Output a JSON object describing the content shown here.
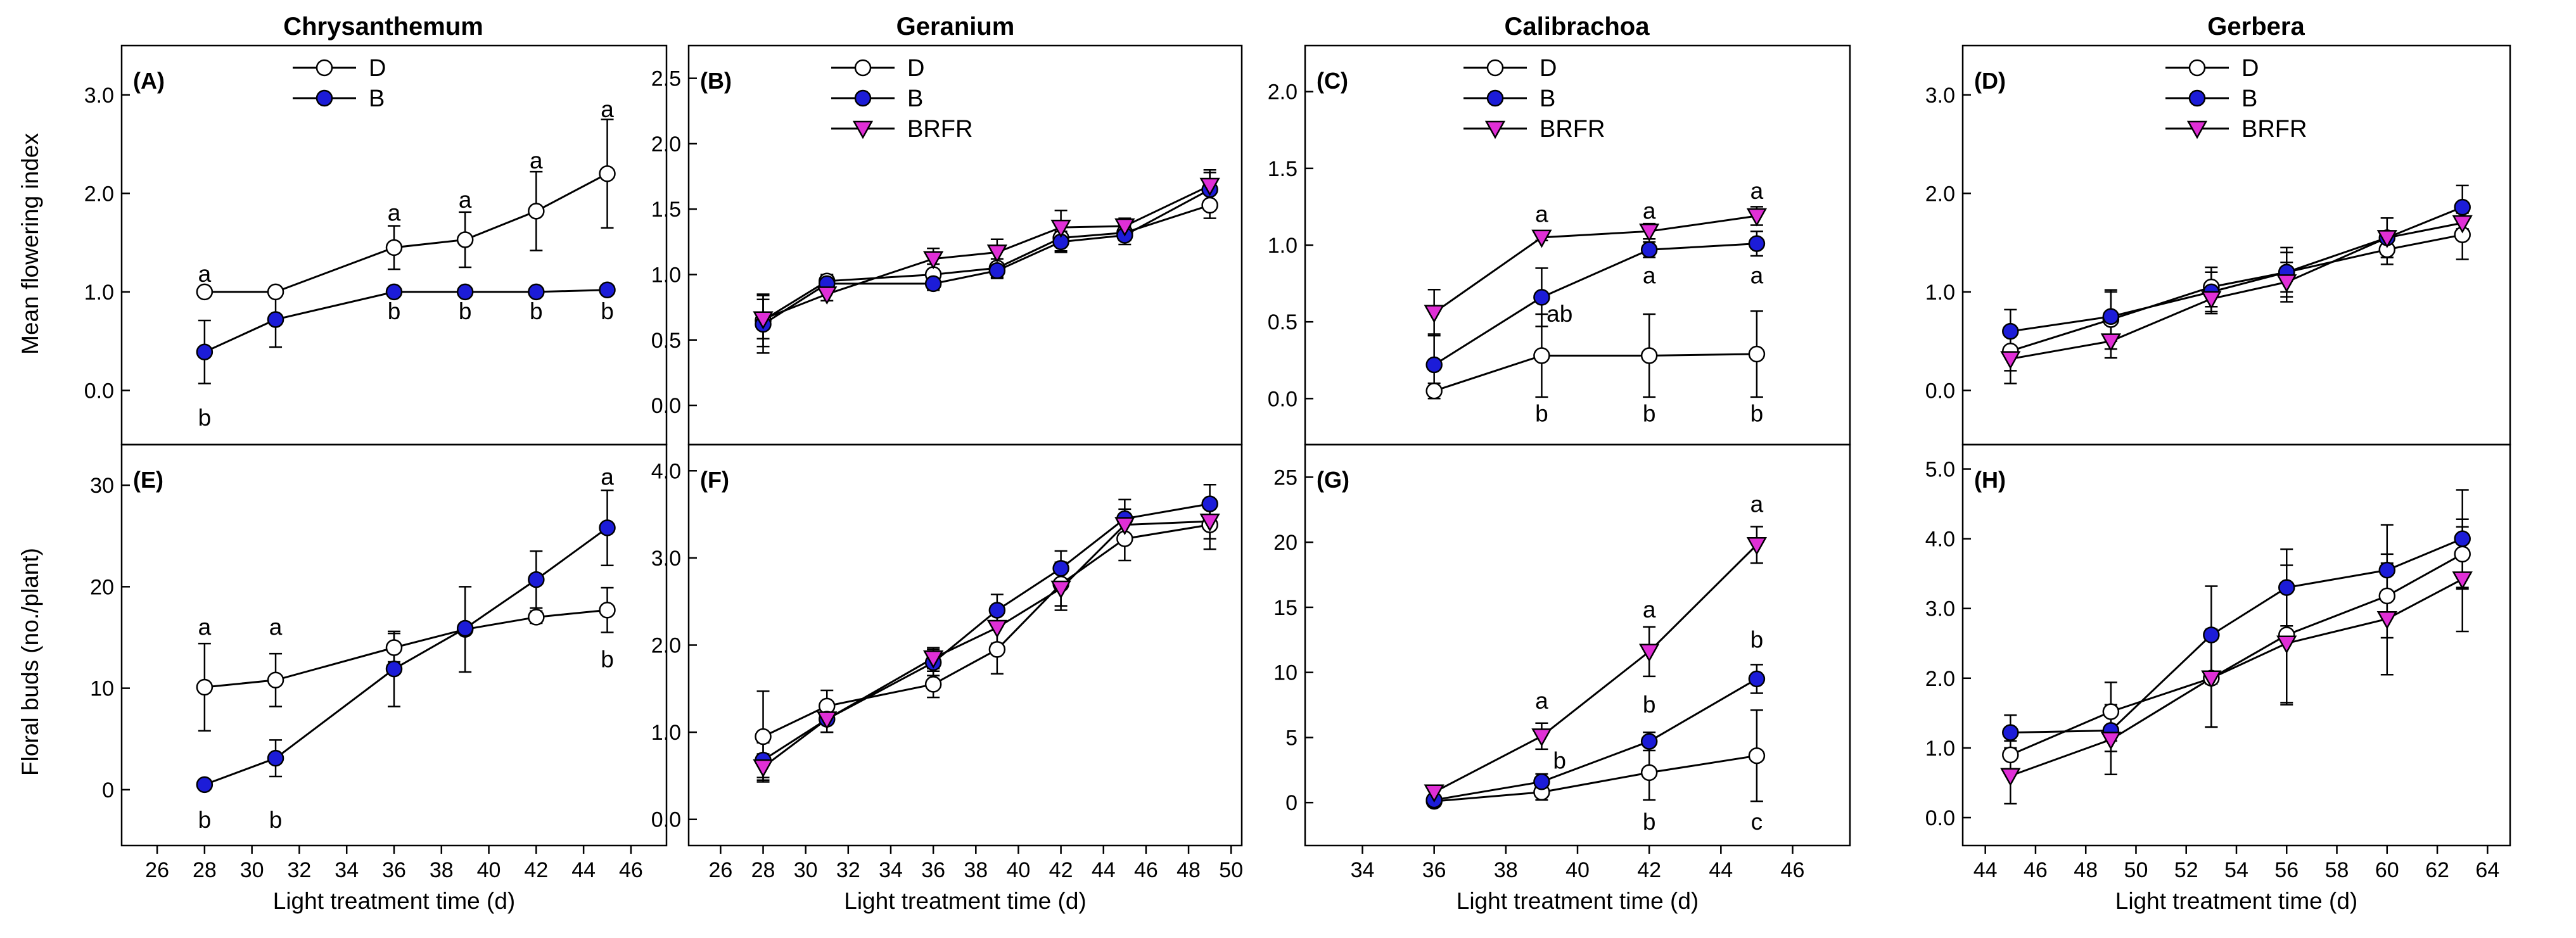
{
  "figure": {
    "columns": [
      "Chrysanthemum",
      "Geranium",
      "Calibrachoa",
      "Gerbera"
    ],
    "ylabels": {
      "top": "Mean flowering index",
      "bottom": "Floral buds (no./plant)"
    },
    "xlabel": "Light treatment time (d)"
  },
  "colors": {
    "D": "#ffffff",
    "B": "#1c1cd8",
    "BRFR": "#e02fd6",
    "stroke": "#000000"
  },
  "chart_data": [
    {
      "id": "A",
      "label": "(A)",
      "type": "line",
      "title": "Chrysanthemum",
      "xlim": [
        24.5,
        47.5
      ],
      "xticks": [
        26,
        28,
        30,
        32,
        34,
        36,
        38,
        40,
        42,
        44,
        46
      ],
      "ylim": [
        -0.55,
        3.5
      ],
      "yticks": [
        0,
        1,
        2,
        3
      ],
      "ytick_labels": [
        "0.0",
        "1.0",
        "2.0",
        "3.0"
      ],
      "xlabel": "",
      "ylabel": "Mean flowering index",
      "legend": "top-center",
      "series": [
        {
          "name": "D",
          "x": [
            28,
            31,
            36,
            39,
            42,
            45
          ],
          "y": [
            1.0,
            1.0,
            1.45,
            1.53,
            1.82,
            2.2
          ],
          "err": [
            0,
            0,
            0.22,
            0.28,
            0.4,
            0.55
          ]
        },
        {
          "name": "B",
          "x": [
            28,
            31,
            36,
            39,
            42,
            45
          ],
          "y": [
            0.39,
            0.72,
            1.0,
            1.0,
            1.0,
            1.02
          ],
          "err": [
            0.32,
            0.28,
            0,
            0,
            0,
            0
          ]
        }
      ],
      "annotations": [
        {
          "x": 28,
          "y": 1.18,
          "text": "a"
        },
        {
          "x": 28,
          "y": -0.28,
          "text": "b"
        },
        {
          "x": 36,
          "y": 1.8,
          "text": "a"
        },
        {
          "x": 36,
          "y": 0.8,
          "text": "b"
        },
        {
          "x": 39,
          "y": 1.93,
          "text": "a"
        },
        {
          "x": 39,
          "y": 0.8,
          "text": "b"
        },
        {
          "x": 42,
          "y": 2.33,
          "text": "a"
        },
        {
          "x": 42,
          "y": 0.8,
          "text": "b"
        },
        {
          "x": 45,
          "y": 2.85,
          "text": "a"
        },
        {
          "x": 45,
          "y": 0.8,
          "text": "b"
        }
      ]
    },
    {
      "id": "B",
      "label": "(B)",
      "type": "line",
      "title": "Geranium",
      "xlim": [
        24.5,
        50.5
      ],
      "xticks": [
        26,
        28,
        30,
        32,
        34,
        36,
        38,
        40,
        42,
        44,
        46,
        48,
        50
      ],
      "ylim": [
        -0.3,
        2.75
      ],
      "yticks": [
        0,
        0.5,
        1,
        1.5,
        2,
        2.5
      ],
      "ytick_labels": [
        "0.0",
        "0.5",
        "1.0",
        "1.5",
        "2.0",
        "2.5"
      ],
      "xlabel": "",
      "ylabel": "",
      "legend": "top-center",
      "series": [
        {
          "name": "D",
          "x": [
            28,
            31,
            36,
            39,
            42,
            45,
            49
          ],
          "y": [
            0.65,
            0.95,
            1.0,
            1.05,
            1.28,
            1.32,
            1.53
          ],
          "err": [
            0.2,
            0.05,
            0.08,
            0.07,
            0.1,
            0.06,
            0.1
          ]
        },
        {
          "name": "B",
          "x": [
            28,
            31,
            36,
            39,
            42,
            45,
            49
          ],
          "y": [
            0.62,
            0.93,
            0.93,
            1.03,
            1.25,
            1.3,
            1.65
          ],
          "err": [
            0.22,
            0.06,
            0.05,
            0.06,
            0.08,
            0.07,
            0.13
          ]
        },
        {
          "name": "BRFR",
          "x": [
            28,
            31,
            36,
            39,
            42,
            45,
            49
          ],
          "y": [
            0.66,
            0.85,
            1.12,
            1.17,
            1.36,
            1.37,
            1.68
          ],
          "err": [
            0.15,
            0.05,
            0.08,
            0.1,
            0.13,
            0.06,
            0.12
          ]
        }
      ],
      "annotations": []
    },
    {
      "id": "C",
      "label": "(C)",
      "type": "line",
      "title": "Calibrachoa",
      "xlim": [
        32.4,
        47.6
      ],
      "xticks": [
        34,
        36,
        38,
        40,
        42,
        44,
        46
      ],
      "ylim": [
        -0.3,
        2.3
      ],
      "yticks": [
        0,
        0.5,
        1,
        1.5,
        2
      ],
      "ytick_labels": [
        "0.0",
        "0.5",
        "1.0",
        "1.5",
        "2.0"
      ],
      "xlabel": "",
      "ylabel": "",
      "legend": "top-center",
      "series": [
        {
          "name": "D",
          "x": [
            36,
            39,
            42,
            45
          ],
          "y": [
            0.05,
            0.28,
            0.28,
            0.29
          ],
          "err": [
            0.05,
            0.27,
            0.27,
            0.28
          ]
        },
        {
          "name": "B",
          "x": [
            36,
            39,
            42,
            45
          ],
          "y": [
            0.22,
            0.66,
            0.97,
            1.01
          ],
          "err": [
            0.2,
            0.19,
            0.05,
            0.08
          ]
        },
        {
          "name": "BRFR",
          "x": [
            36,
            39,
            42,
            45
          ],
          "y": [
            0.56,
            1.05,
            1.09,
            1.19
          ],
          "err": [
            0.15,
            0.02,
            0.05,
            0.06
          ]
        }
      ],
      "annotations": [
        {
          "x": 39,
          "y": 1.2,
          "text": "a"
        },
        {
          "x": 39.5,
          "y": 0.55,
          "text": "ab"
        },
        {
          "x": 39,
          "y": -0.1,
          "text": "b"
        },
        {
          "x": 42,
          "y": 1.22,
          "text": "a"
        },
        {
          "x": 42,
          "y": 0.8,
          "text": "a"
        },
        {
          "x": 42,
          "y": -0.1,
          "text": "b"
        },
        {
          "x": 45,
          "y": 1.35,
          "text": "a"
        },
        {
          "x": 45,
          "y": 0.8,
          "text": "a"
        },
        {
          "x": 45,
          "y": -0.1,
          "text": "b"
        }
      ]
    },
    {
      "id": "D",
      "label": "(D)",
      "type": "line",
      "title": "Gerbera",
      "xlim": [
        43.1,
        64.9
      ],
      "xticks": [
        44,
        46,
        48,
        50,
        52,
        54,
        56,
        58,
        60,
        62,
        64
      ],
      "ylim": [
        -0.55,
        3.5
      ],
      "yticks": [
        0,
        1,
        2,
        3
      ],
      "ytick_labels": [
        "0.0",
        "1.0",
        "2.0",
        "3.0"
      ],
      "xlabel": "",
      "ylabel": "",
      "legend": "top-center",
      "series": [
        {
          "name": "D",
          "x": [
            45,
            49,
            53,
            56,
            60,
            63
          ],
          "y": [
            0.4,
            0.72,
            1.05,
            1.2,
            1.43,
            1.58
          ],
          "err": [
            0.2,
            0.3,
            0.2,
            0.2,
            0.15,
            0.25
          ]
        },
        {
          "name": "B",
          "x": [
            45,
            49,
            53,
            56,
            60,
            63
          ],
          "y": [
            0.6,
            0.75,
            1.0,
            1.2,
            1.55,
            1.86
          ],
          "err": [
            0.22,
            0.25,
            0.2,
            0.25,
            0.2,
            0.22
          ]
        },
        {
          "name": "BRFR",
          "x": [
            45,
            49,
            53,
            56,
            60,
            63
          ],
          "y": [
            0.32,
            0.5,
            0.93,
            1.1,
            1.55,
            1.7
          ],
          "err": [
            0.25,
            0.17,
            0.15,
            0.2,
            0.2,
            0.1
          ]
        }
      ],
      "annotations": []
    },
    {
      "id": "E",
      "label": "(E)",
      "type": "line",
      "title": "",
      "xlim": [
        24.5,
        47.5
      ],
      "xticks": [
        26,
        28,
        30,
        32,
        34,
        36,
        38,
        40,
        42,
        44,
        46
      ],
      "ylim": [
        -5.5,
        34
      ],
      "yticks": [
        0,
        10,
        20,
        30
      ],
      "ytick_labels": [
        "0",
        "10",
        "20",
        "30"
      ],
      "xlabel": "Light treatment time (d)",
      "ylabel": "Floral buds (no./plant)",
      "series": [
        {
          "name": "D",
          "x": [
            28,
            31,
            36,
            39,
            42,
            45
          ],
          "y": [
            10.1,
            10.8,
            14.0,
            15.8,
            17.0,
            17.7
          ],
          "err": [
            4.3,
            2.6,
            1.4,
            4.2,
            0.6,
            2.2
          ]
        },
        {
          "name": "B",
          "x": [
            28,
            31,
            36,
            39,
            42,
            45
          ],
          "y": [
            0.5,
            3.1,
            11.9,
            15.9,
            20.7,
            25.8
          ],
          "err": [
            0.3,
            1.8,
            3.7,
            0.5,
            2.8,
            3.7
          ]
        }
      ],
      "annotations": [
        {
          "x": 28,
          "y": 16.0,
          "text": "a"
        },
        {
          "x": 28,
          "y": -3.0,
          "text": "b"
        },
        {
          "x": 31,
          "y": 16.0,
          "text": "a"
        },
        {
          "x": 31,
          "y": -3.0,
          "text": "b"
        },
        {
          "x": 45,
          "y": 30.8,
          "text": "a"
        },
        {
          "x": 45,
          "y": 12.8,
          "text": "b"
        }
      ]
    },
    {
      "id": "F",
      "label": "(F)",
      "type": "line",
      "title": "",
      "xlim": [
        24.5,
        50.5
      ],
      "xticks": [
        26,
        28,
        30,
        32,
        34,
        36,
        38,
        40,
        42,
        44,
        46,
        48,
        50
      ],
      "ylim": [
        -0.3,
        4.3
      ],
      "yticks": [
        0,
        1,
        2,
        3,
        4
      ],
      "ytick_labels": [
        "0.0",
        "1.0",
        "2.0",
        "3.0",
        "4.0"
      ],
      "xlabel": "Light treatment time (d)",
      "ylabel": "",
      "series": [
        {
          "name": "D",
          "x": [
            28,
            31,
            36,
            39,
            42,
            45,
            49
          ],
          "y": [
            0.95,
            1.3,
            1.55,
            1.95,
            2.7,
            3.22,
            3.38
          ],
          "err": [
            0.52,
            0.18,
            0.15,
            0.28,
            0.25,
            0.25,
            0.28
          ]
        },
        {
          "name": "B",
          "x": [
            28,
            31,
            36,
            39,
            42,
            45,
            49
          ],
          "y": [
            0.68,
            1.15,
            1.8,
            2.4,
            2.88,
            3.45,
            3.62
          ],
          "err": [
            0.2,
            0.15,
            0.15,
            0.18,
            0.2,
            0.22,
            0.22
          ]
        },
        {
          "name": "BRFR",
          "x": [
            28,
            31,
            36,
            39,
            42,
            45,
            49
          ],
          "y": [
            0.6,
            1.15,
            1.85,
            2.2,
            2.65,
            3.38,
            3.42
          ],
          "err": [
            0.15,
            0.15,
            0.12,
            0.18,
            0.25,
            0.18,
            0.2
          ]
        }
      ],
      "annotations": []
    },
    {
      "id": "G",
      "label": "(G)",
      "type": "line",
      "title": "",
      "xlim": [
        32.4,
        47.6
      ],
      "xticks": [
        34,
        36,
        38,
        40,
        42,
        44,
        46
      ],
      "ylim": [
        -3.3,
        27.5
      ],
      "yticks": [
        0,
        5,
        10,
        15,
        20,
        25
      ],
      "ytick_labels": [
        "0",
        "5",
        "10",
        "15",
        "20",
        "25"
      ],
      "xlabel": "Light treatment time (d)",
      "ylabel": "",
      "series": [
        {
          "name": "D",
          "x": [
            36,
            39,
            42,
            45
          ],
          "y": [
            0.1,
            0.8,
            2.3,
            3.6
          ],
          "err": [
            0.2,
            0.6,
            2.1,
            3.5
          ]
        },
        {
          "name": "B",
          "x": [
            36,
            39,
            42,
            45
          ],
          "y": [
            0.2,
            1.6,
            4.7,
            9.5
          ],
          "err": [
            0.2,
            0.6,
            0.7,
            1.1
          ]
        },
        {
          "name": "BRFR",
          "x": [
            36,
            39,
            42,
            45
          ],
          "y": [
            0.8,
            5.1,
            11.6,
            19.8
          ],
          "err": [
            0.3,
            1.0,
            1.9,
            1.4
          ]
        }
      ],
      "annotations": [
        {
          "x": 39,
          "y": 7.8,
          "text": "a"
        },
        {
          "x": 39.5,
          "y": 3.2,
          "text": "b"
        },
        {
          "x": 42,
          "y": 14.8,
          "text": "a"
        },
        {
          "x": 42,
          "y": 7.5,
          "text": "b"
        },
        {
          "x": 42,
          "y": -1.5,
          "text": "b"
        },
        {
          "x": 45,
          "y": 22.9,
          "text": "a"
        },
        {
          "x": 45,
          "y": 12.5,
          "text": "b"
        },
        {
          "x": 45,
          "y": -1.5,
          "text": "c"
        }
      ]
    },
    {
      "id": "H",
      "label": "(H)",
      "type": "line",
      "title": "",
      "xlim": [
        43.1,
        64.9
      ],
      "xticks": [
        44,
        46,
        48,
        50,
        52,
        54,
        56,
        58,
        60,
        62,
        64
      ],
      "ylim": [
        -0.4,
        5.35
      ],
      "yticks": [
        0,
        1,
        2,
        3,
        4,
        5
      ],
      "ytick_labels": [
        "0.0",
        "1.0",
        "2.0",
        "3.0",
        "4.0",
        "5.0"
      ],
      "xlabel": "Light treatment time (d)",
      "ylabel": "",
      "series": [
        {
          "name": "D",
          "x": [
            45,
            49,
            53,
            56,
            60,
            63
          ],
          "y": [
            0.9,
            1.52,
            2.0,
            2.62,
            3.18,
            3.78
          ],
          "err": [
            0.2,
            0.42,
            0.7,
            1.0,
            0.6,
            0.5
          ]
        },
        {
          "name": "B",
          "x": [
            45,
            49,
            53,
            56,
            60,
            63
          ],
          "y": [
            1.22,
            1.25,
            2.62,
            3.3,
            3.55,
            4.0
          ],
          "err": [
            0.25,
            0.3,
            0.7,
            0.55,
            0.65,
            0.7
          ]
        },
        {
          "name": "BRFR",
          "x": [
            45,
            49,
            53,
            56,
            60,
            63
          ],
          "y": [
            0.6,
            1.12,
            2.0,
            2.5,
            2.85,
            3.42
          ],
          "err": [
            0.4,
            0.5,
            0.7,
            0.85,
            0.8,
            0.75
          ]
        }
      ],
      "annotations": []
    }
  ]
}
